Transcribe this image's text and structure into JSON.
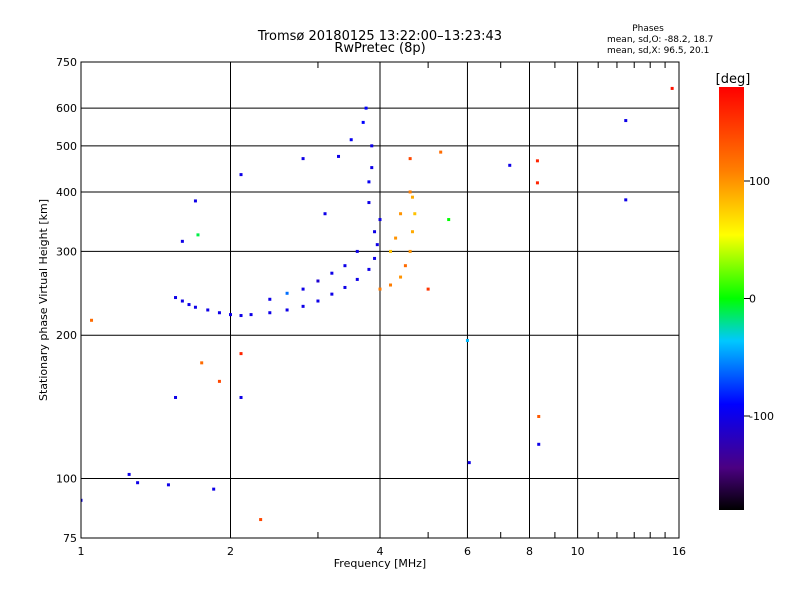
{
  "chart_data": {
    "type": "scatter",
    "title": "Tromsø 20180125 13:22:00–13:23:43",
    "subtitle": "RwPretec (8p)",
    "xlabel": "Frequency [MHz]",
    "ylabel": "Stationary phase Virtual Height [km]",
    "xscale": "log",
    "yscale": "log",
    "xlim": [
      1,
      16
    ],
    "ylim": [
      75,
      750
    ],
    "xticks": [
      "1",
      "2",
      "4",
      "6",
      "8",
      "10",
      "16"
    ],
    "xtick_values": [
      1,
      2,
      4,
      6,
      8,
      10,
      16
    ],
    "yticks": [
      "75",
      "100",
      "200",
      "300",
      "400",
      "500",
      "600",
      "750"
    ],
    "ytick_values": [
      75,
      100,
      200,
      300,
      400,
      500,
      600,
      750
    ],
    "x_minor": [
      3,
      5,
      7,
      9,
      11,
      12,
      13,
      14,
      15
    ],
    "grid": true,
    "phase_box": {
      "heading": "Phases",
      "line1": "mean, sd,O: -88.2, 18.7",
      "line2": "mean, sd,X:  96.5, 20.1"
    },
    "colorbar": {
      "label": "[deg]",
      "range": [
        -180,
        180
      ],
      "ticks": [
        "100",
        "0",
        "-100"
      ],
      "tick_values": [
        100,
        0,
        -100
      ]
    },
    "o_trace_phase": -88.2,
    "x_trace_phase": 96.5,
    "scatter_points": [
      [
        1.55,
        240,
        -100
      ],
      [
        1.6,
        236,
        -100
      ],
      [
        1.65,
        232,
        -100
      ],
      [
        1.7,
        229,
        -100
      ],
      [
        1.8,
        226,
        -100
      ],
      [
        1.9,
        223,
        -100
      ],
      [
        2.0,
        221,
        -100
      ],
      [
        2.1,
        220,
        -100
      ],
      [
        2.2,
        221,
        -100
      ],
      [
        2.4,
        223,
        -100
      ],
      [
        2.6,
        226,
        -100
      ],
      [
        2.8,
        230,
        -100
      ],
      [
        3.0,
        236,
        -100
      ],
      [
        3.2,
        244,
        -100
      ],
      [
        3.4,
        252,
        -100
      ],
      [
        3.6,
        262,
        -100
      ],
      [
        3.8,
        275,
        -100
      ],
      [
        3.9,
        290,
        -100
      ],
      [
        3.95,
        310,
        -100
      ],
      [
        4.0,
        350,
        -100
      ],
      [
        3.3,
        475,
        -100
      ],
      [
        3.5,
        515,
        -95
      ],
      [
        3.7,
        560,
        -90
      ],
      [
        3.75,
        600,
        -90
      ],
      [
        3.8,
        420,
        -95
      ],
      [
        3.8,
        380,
        -100
      ],
      [
        3.85,
        450,
        -100
      ],
      [
        3.85,
        500,
        -100
      ],
      [
        3.9,
        330,
        -100
      ],
      [
        3.6,
        300,
        -100
      ],
      [
        3.4,
        280,
        -100
      ],
      [
        3.2,
        270,
        -100
      ],
      [
        3.0,
        260,
        -110
      ],
      [
        2.8,
        250,
        -100
      ],
      [
        2.6,
        245,
        -60
      ],
      [
        2.4,
        238,
        -100
      ],
      [
        4.0,
        250,
        110
      ],
      [
        4.2,
        255,
        110
      ],
      [
        4.4,
        265,
        100
      ],
      [
        4.5,
        280,
        120
      ],
      [
        4.6,
        300,
        100
      ],
      [
        4.65,
        330,
        90
      ],
      [
        4.7,
        360,
        80
      ],
      [
        4.65,
        390,
        90
      ],
      [
        4.6,
        400,
        110
      ],
      [
        4.4,
        360,
        100
      ],
      [
        4.3,
        320,
        100
      ],
      [
        4.2,
        300,
        80
      ],
      [
        1.05,
        215,
        120
      ],
      [
        1.55,
        148,
        -100
      ],
      [
        1.6,
        315,
        -100
      ],
      [
        1.7,
        383,
        -100
      ],
      [
        1.72,
        325,
        -10
      ],
      [
        2.1,
        148,
        -100
      ],
      [
        2.1,
        435,
        -100
      ],
      [
        2.3,
        82,
        140
      ],
      [
        1.75,
        175,
        120
      ],
      [
        1.9,
        160,
        140
      ],
      [
        2.1,
        183,
        160
      ],
      [
        2.8,
        470,
        -100
      ],
      [
        3.1,
        360,
        -100
      ],
      [
        4.6,
        470,
        140
      ],
      [
        5.3,
        485,
        120
      ],
      [
        6.0,
        195,
        -40
      ],
      [
        6.05,
        108,
        -100
      ],
      [
        7.3,
        455,
        -100
      ],
      [
        8.3,
        418,
        160
      ],
      [
        8.3,
        465,
        160
      ],
      [
        8.35,
        135,
        130
      ],
      [
        8.35,
        118,
        -100
      ],
      [
        12.5,
        565,
        -100
      ],
      [
        12.5,
        385,
        -100
      ],
      [
        15.5,
        660,
        170
      ],
      [
        1.0,
        90,
        -100
      ],
      [
        1.25,
        102,
        -100
      ],
      [
        1.3,
        98,
        -100
      ],
      [
        1.5,
        97,
        -100
      ],
      [
        1.85,
        95,
        -100
      ],
      [
        5.0,
        250,
        150
      ],
      [
        5.5,
        350,
        0
      ]
    ]
  }
}
